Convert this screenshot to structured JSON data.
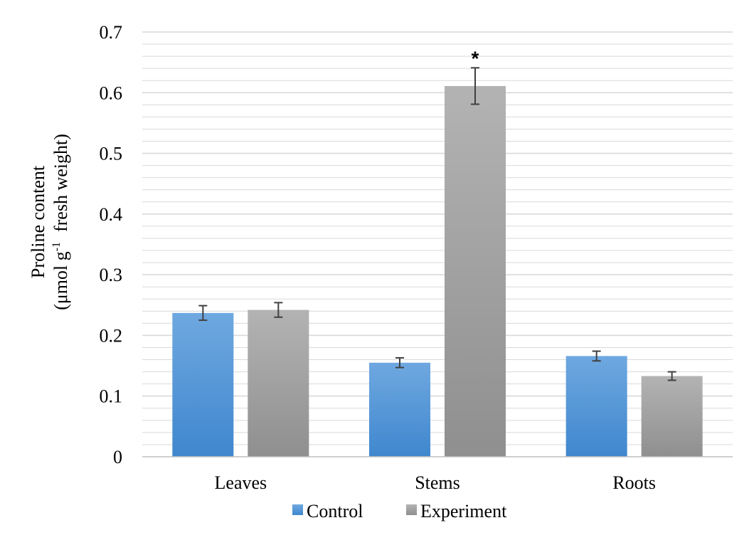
{
  "colors": {
    "control_top": "#6FA8E0",
    "control_bottom": "#3F87CE",
    "experiment_top": "#B3B3B3",
    "experiment_bottom": "#8F8F8F",
    "grid": "#D9D9D9",
    "error_bar": "#404040"
  },
  "chart_data": {
    "type": "bar",
    "categories": [
      "Leaves",
      "Stems",
      "Roots"
    ],
    "series": [
      {
        "name": "Control",
        "values": [
          0.237,
          0.155,
          0.166
        ],
        "errors": [
          0.012,
          0.008,
          0.008
        ]
      },
      {
        "name": "Experiment",
        "values": [
          0.242,
          0.611,
          0.133
        ],
        "errors": [
          0.012,
          0.03,
          0.007
        ]
      }
    ],
    "ylabel_line1": "Proline content",
    "ylabel_line2_before": "(μmol g",
    "ylabel_superscript": "-1",
    "ylabel_line2_after": "fresh weight)",
    "ylim": [
      0,
      0.7
    ],
    "yticks": [
      "0",
      "0.1",
      "0.2",
      "0.3",
      "0.4",
      "0.5",
      "0.6",
      "0.7"
    ],
    "minor_grid_step": 0.02,
    "grid": true,
    "legend_position": "bottom",
    "annotations": [
      {
        "category": "Stems",
        "series": "Experiment",
        "text": "*"
      }
    ]
  }
}
